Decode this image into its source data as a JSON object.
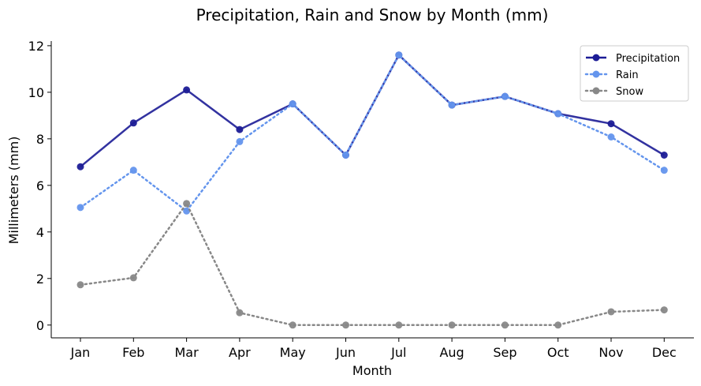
{
  "chart_data": {
    "type": "line",
    "title": "Precipitation, Rain and Snow by Month (mm)",
    "xlabel": "Month",
    "ylabel": "Millimeters (mm)",
    "categories": [
      "Jan",
      "Feb",
      "Mar",
      "Apr",
      "May",
      "Jun",
      "Jul",
      "Aug",
      "Sep",
      "Oct",
      "Nov",
      "Dec"
    ],
    "ylim": [
      -0.55,
      12.2
    ],
    "yticks": [
      0,
      2,
      4,
      6,
      8,
      10,
      12
    ],
    "grid": false,
    "legend_position": "top-right",
    "series": [
      {
        "name": "Precipitation",
        "color": "#1c1c96",
        "line_style": "solid",
        "values": [
          6.8,
          8.68,
          10.1,
          8.4,
          9.5,
          7.3,
          11.6,
          9.45,
          9.82,
          9.08,
          8.65,
          7.3
        ]
      },
      {
        "name": "Rain",
        "color": "#6495ed",
        "line_style": "dotted",
        "values": [
          5.05,
          6.65,
          4.9,
          7.88,
          9.5,
          7.3,
          11.6,
          9.45,
          9.82,
          9.08,
          8.08,
          6.65
        ]
      },
      {
        "name": "Snow",
        "color": "#888888",
        "line_style": "dotted",
        "values": [
          1.73,
          2.03,
          5.22,
          0.53,
          0.0,
          0.0,
          0.0,
          0.0,
          0.0,
          0.0,
          0.57,
          0.65
        ]
      }
    ]
  }
}
